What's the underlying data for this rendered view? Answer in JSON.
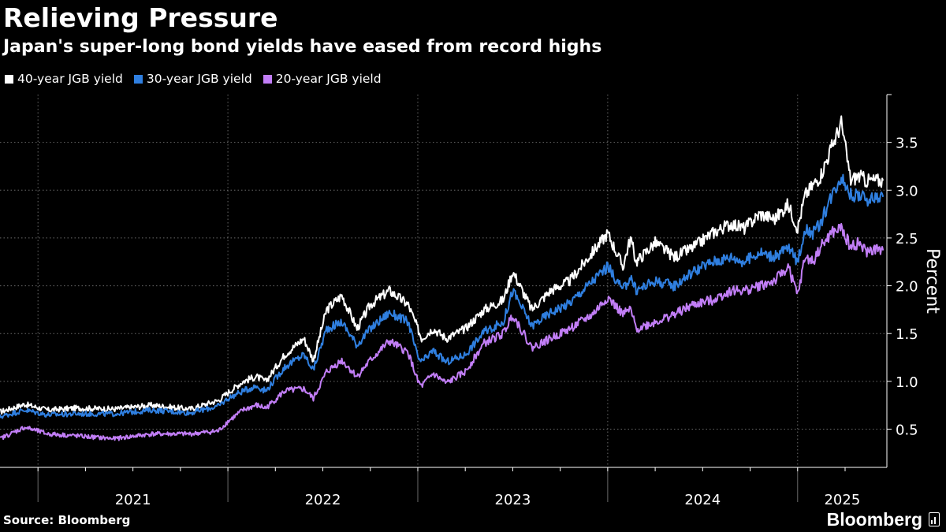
{
  "header": {
    "title": "Relieving Pressure",
    "subtitle": "Japan's super-long bond yields have eased from record highs"
  },
  "legend": [
    {
      "label": "40-year JGB yield",
      "color": "#ffffff"
    },
    {
      "label": "30-year JGB yield",
      "color": "#2f7fe0"
    },
    {
      "label": "20-year JGB yield",
      "color": "#c27ef7"
    }
  ],
  "footer": {
    "source": "Source: Bloomberg",
    "brand": "Bloomberg"
  },
  "chart_data": {
    "type": "line",
    "title": "Relieving Pressure",
    "subtitle": "Japan's super-long bond yields have eased from record highs",
    "xlabel": "",
    "ylabel": "Percent",
    "xlim": [
      2020.8,
      2025.47
    ],
    "ylim": [
      0.1,
      4.0
    ],
    "yticks": [
      0.5,
      1.0,
      1.5,
      2.0,
      2.5,
      3.0,
      3.5
    ],
    "ytick_labels": [
      "0.5",
      "1.0",
      "1.5",
      "2.0",
      "2.5",
      "3.0",
      "3.5"
    ],
    "year_boundaries": [
      2021,
      2022,
      2023,
      2024,
      2025
    ],
    "year_labels": [
      {
        "label": "2021",
        "start": 2021,
        "end": 2022
      },
      {
        "label": "2022",
        "start": 2022,
        "end": 2023
      },
      {
        "label": "2023",
        "start": 2023,
        "end": 2024
      },
      {
        "label": "2024",
        "start": 2024,
        "end": 2025
      },
      {
        "label": "2025",
        "start": 2025,
        "end": 2025.47
      }
    ],
    "grid": true,
    "series": [
      {
        "name": "40-year JGB yield",
        "color": "#ffffff",
        "x": [
          2020.8,
          2020.93,
          2021.05,
          2021.2,
          2021.4,
          2021.6,
          2021.8,
          2021.95,
          2022.0,
          2022.08,
          2022.15,
          2022.2,
          2022.3,
          2022.4,
          2022.45,
          2022.52,
          2022.6,
          2022.68,
          2022.75,
          2022.85,
          2022.95,
          2023.0,
          2023.02,
          2023.08,
          2023.15,
          2023.25,
          2023.35,
          2023.45,
          2023.5,
          2023.6,
          2023.7,
          2023.8,
          2023.92,
          2024.0,
          2024.08,
          2024.12,
          2024.15,
          2024.25,
          2024.35,
          2024.45,
          2024.55,
          2024.65,
          2024.72,
          2024.8,
          2024.88,
          2024.95,
          2025.0,
          2025.04,
          2025.08,
          2025.12,
          2025.18,
          2025.23,
          2025.28,
          2025.32,
          2025.36,
          2025.4,
          2025.45
        ],
        "values": [
          0.68,
          0.76,
          0.7,
          0.72,
          0.71,
          0.75,
          0.71,
          0.8,
          0.88,
          1.0,
          1.05,
          1.0,
          1.28,
          1.45,
          1.22,
          1.75,
          1.9,
          1.55,
          1.8,
          1.95,
          1.8,
          1.55,
          1.45,
          1.55,
          1.45,
          1.55,
          1.75,
          1.85,
          2.15,
          1.75,
          1.95,
          2.05,
          2.35,
          2.55,
          2.2,
          2.5,
          2.25,
          2.45,
          2.3,
          2.4,
          2.55,
          2.65,
          2.6,
          2.75,
          2.7,
          2.85,
          2.6,
          2.95,
          3.05,
          3.15,
          3.45,
          3.7,
          3.1,
          3.15,
          3.1,
          3.1,
          3.1
        ],
        "end_value": 3.1
      },
      {
        "name": "30-year JGB yield",
        "color": "#2f7fe0",
        "x": [
          2020.8,
          2020.93,
          2021.05,
          2021.2,
          2021.4,
          2021.6,
          2021.8,
          2021.95,
          2022.0,
          2022.08,
          2022.15,
          2022.2,
          2022.3,
          2022.4,
          2022.45,
          2022.52,
          2022.6,
          2022.68,
          2022.75,
          2022.85,
          2022.95,
          2023.0,
          2023.02,
          2023.08,
          2023.15,
          2023.25,
          2023.35,
          2023.45,
          2023.5,
          2023.6,
          2023.7,
          2023.8,
          2023.92,
          2024.0,
          2024.08,
          2024.12,
          2024.15,
          2024.25,
          2024.35,
          2024.45,
          2024.55,
          2024.65,
          2024.72,
          2024.8,
          2024.88,
          2024.95,
          2025.0,
          2025.04,
          2025.08,
          2025.12,
          2025.18,
          2025.23,
          2025.28,
          2025.32,
          2025.36,
          2025.4,
          2025.45
        ],
        "values": [
          0.63,
          0.7,
          0.65,
          0.66,
          0.66,
          0.7,
          0.67,
          0.74,
          0.82,
          0.9,
          0.95,
          0.9,
          1.15,
          1.28,
          1.12,
          1.55,
          1.62,
          1.38,
          1.55,
          1.72,
          1.62,
          1.25,
          1.2,
          1.32,
          1.2,
          1.28,
          1.52,
          1.62,
          1.95,
          1.58,
          1.72,
          1.82,
          2.05,
          2.2,
          1.95,
          2.1,
          1.95,
          2.05,
          2.0,
          2.15,
          2.25,
          2.3,
          2.25,
          2.35,
          2.3,
          2.4,
          2.25,
          2.6,
          2.55,
          2.65,
          2.95,
          3.15,
          2.95,
          2.95,
          2.9,
          2.92,
          2.93
        ],
        "end_value": 2.93
      },
      {
        "name": "20-year JGB yield",
        "color": "#c27ef7",
        "x": [
          2020.8,
          2020.93,
          2021.05,
          2021.2,
          2021.4,
          2021.6,
          2021.8,
          2021.95,
          2022.0,
          2022.08,
          2022.15,
          2022.2,
          2022.3,
          2022.4,
          2022.45,
          2022.52,
          2022.6,
          2022.68,
          2022.75,
          2022.85,
          2022.95,
          2023.0,
          2023.02,
          2023.08,
          2023.15,
          2023.25,
          2023.35,
          2023.45,
          2023.5,
          2023.6,
          2023.7,
          2023.8,
          2023.92,
          2024.0,
          2024.08,
          2024.12,
          2024.15,
          2024.25,
          2024.35,
          2024.45,
          2024.55,
          2024.65,
          2024.72,
          2024.8,
          2024.88,
          2024.95,
          2025.0,
          2025.04,
          2025.08,
          2025.12,
          2025.18,
          2025.23,
          2025.28,
          2025.32,
          2025.36,
          2025.4,
          2025.45
        ],
        "values": [
          0.4,
          0.52,
          0.45,
          0.43,
          0.4,
          0.45,
          0.45,
          0.48,
          0.58,
          0.7,
          0.75,
          0.72,
          0.9,
          0.92,
          0.82,
          1.1,
          1.22,
          1.05,
          1.22,
          1.42,
          1.3,
          1.0,
          0.95,
          1.08,
          0.98,
          1.1,
          1.4,
          1.5,
          1.7,
          1.35,
          1.45,
          1.55,
          1.7,
          1.88,
          1.7,
          1.75,
          1.55,
          1.62,
          1.7,
          1.8,
          1.85,
          1.95,
          1.95,
          2.0,
          2.05,
          2.2,
          1.9,
          2.3,
          2.25,
          2.4,
          2.55,
          2.6,
          2.4,
          2.45,
          2.35,
          2.38,
          2.37
        ],
        "end_value": 2.37
      }
    ]
  }
}
